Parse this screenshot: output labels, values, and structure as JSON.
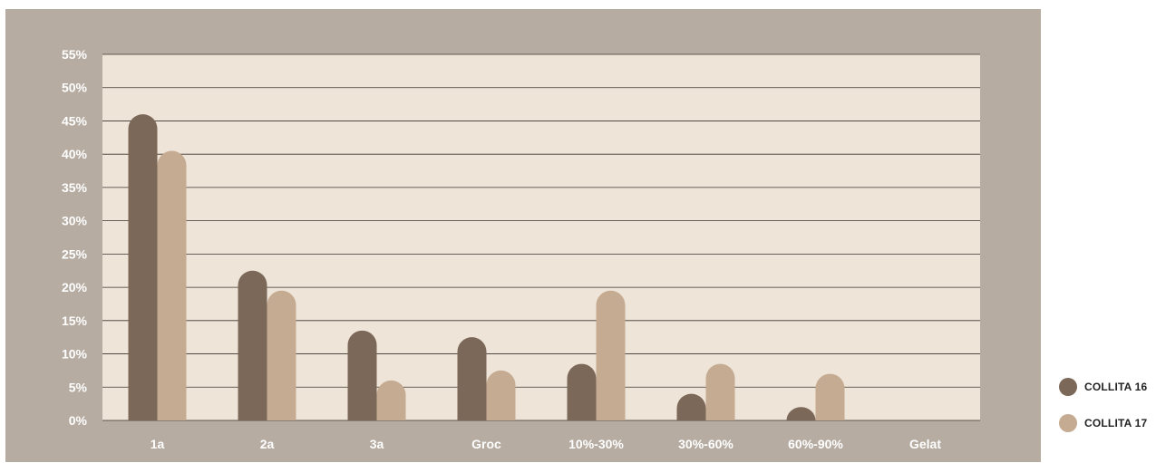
{
  "chart_data": {
    "type": "bar",
    "categories": [
      "1a",
      "2a",
      "3a",
      "Groc",
      "10%-30%",
      "30%-60%",
      "60%-90%",
      "Gelat"
    ],
    "series": [
      {
        "name": "COLLITA 16",
        "values": [
          46,
          22.5,
          13.5,
          12.5,
          8.5,
          4,
          2,
          0
        ],
        "color": "#7c6858"
      },
      {
        "name": "COLLITA 17",
        "values": [
          40.5,
          19.5,
          6,
          7.5,
          19.5,
          8.5,
          7,
          0
        ],
        "color": "#c4ab92"
      }
    ],
    "yticks": [
      "0%",
      "5%",
      "10%",
      "15%",
      "20%",
      "25%",
      "30%",
      "35%",
      "40%",
      "45%",
      "50%",
      "55%"
    ],
    "ylim": [
      0,
      55
    ],
    "grid": true,
    "legend_position": "right",
    "plot_background": "#efe4d8",
    "frame_background": "#b6aca2"
  }
}
